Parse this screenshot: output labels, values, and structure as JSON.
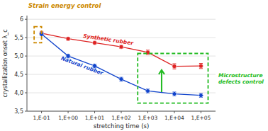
{
  "chart_data": {
    "type": "line",
    "xlabel": "stretching time (s)",
    "ylabel": "crystallization onset λ_c",
    "x": [
      -1,
      0,
      1,
      2,
      3,
      4,
      5
    ],
    "xlim": [
      -1.55,
      5.55
    ],
    "xticks": [
      {
        "value": -1,
        "label": "1,E-01"
      },
      {
        "value": 0,
        "label": "1,E+00"
      },
      {
        "value": 1,
        "label": "1,E+01"
      },
      {
        "value": 2,
        "label": "1,E+02"
      },
      {
        "value": 3,
        "label": "1,E+03"
      },
      {
        "value": 4,
        "label": "1,E+04"
      },
      {
        "value": 5,
        "label": "1,E+05"
      }
    ],
    "ylim": [
      3.5,
      6.1
    ],
    "yticks": [
      {
        "value": 3.5,
        "label": "3,5"
      },
      {
        "value": 4.0,
        "label": "4,0"
      },
      {
        "value": 4.5,
        "label": "4,5"
      },
      {
        "value": 5.0,
        "label": "5,0"
      },
      {
        "value": 5.5,
        "label": "5,5"
      },
      6
    ],
    "grid": true,
    "series": [
      {
        "name": "Synthetic rubber",
        "color": "#dd2222",
        "marker": "circle",
        "line_style": "solid",
        "values": [
          5.62,
          5.47,
          5.36,
          5.25,
          5.1,
          4.72,
          4.73
        ],
        "errors": [
          0.05,
          0.04,
          0.04,
          0.04,
          0.06,
          0.07,
          0.07
        ]
      },
      {
        "name": "Natural rubber",
        "color": "#1144cc",
        "marker": "diamond",
        "line_style": "solid",
        "values": [
          5.6,
          5.0,
          4.73,
          4.37,
          4.05,
          3.97,
          3.93
        ],
        "errors": [
          0.05,
          0.05,
          0.05,
          0.05,
          0.05,
          0.05,
          0.05
        ]
      }
    ],
    "annotations": [
      {
        "text": "Strain energy control",
        "color": "#cc8800",
        "box": [
          -1.28,
          5.36,
          0.28,
          0.44
        ]
      },
      {
        "text": "Microstructure\ndefects control",
        "color": "#22bb22",
        "box": [
          2.62,
          3.72,
          2.65,
          1.35
        ],
        "arrow": {
          "x": 3.52,
          "y0": 4.02,
          "y1": 4.62
        }
      }
    ]
  }
}
